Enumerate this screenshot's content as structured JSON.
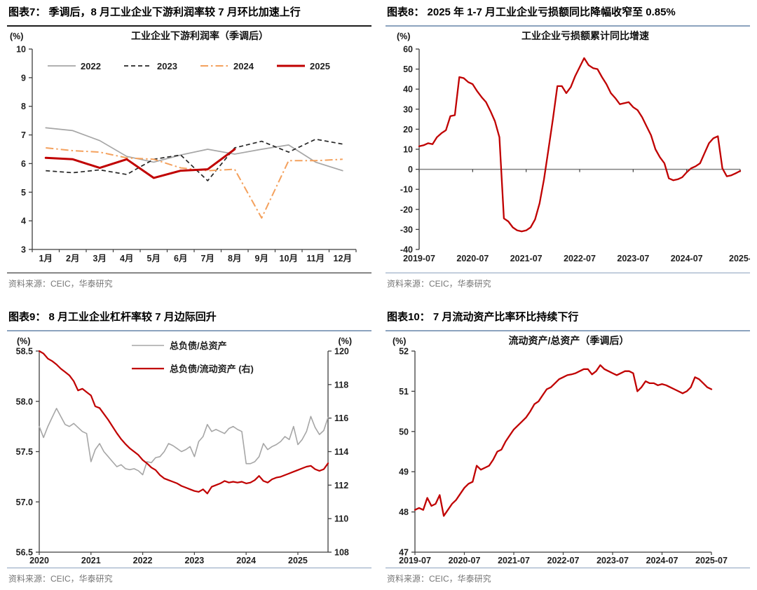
{
  "panels": [
    {
      "header": "图表7： 季调后，8 月工业企业下游利润率较 7 月环比加速上行",
      "source": "资料来源：CEIC，华泰研究"
    },
    {
      "header": "图表8： 2025 年 1-7 月工业企业亏损额同比降幅收窄至 0.85%",
      "source": "资料来源：CEIC，华泰研究"
    },
    {
      "header": "图表9： 8 月工业企业杠杆率较 7 月边际回升",
      "source": "资料来源：CEIC，华泰研究"
    },
    {
      "header": "图表10： 7 月流动资产比率环比持续下行",
      "source": "资料来源：CEIC，华泰研究"
    }
  ],
  "chart_data": [
    {
      "type": "line",
      "title": "工业企业下游利润率（季调后）",
      "y_unit": "(%)",
      "ylim": [
        3,
        10
      ],
      "yticks": [
        3,
        4,
        5,
        6,
        7,
        8,
        9,
        10
      ],
      "categories": [
        "1月",
        "2月",
        "3月",
        "4月",
        "5月",
        "6月",
        "7月",
        "8月",
        "9月",
        "10月",
        "11月",
        "12月"
      ],
      "legend": "row",
      "series": [
        {
          "name": "2022",
          "color": "#a6a6a6",
          "dash": "solid",
          "width": 1.7,
          "values": [
            7.25,
            7.15,
            6.8,
            6.25,
            6.05,
            6.3,
            6.5,
            6.33,
            6.5,
            6.65,
            6.05,
            5.75
          ]
        },
        {
          "name": "2023",
          "color": "#262626",
          "dash": "dashed",
          "width": 1.7,
          "values": [
            5.75,
            5.68,
            5.78,
            5.62,
            6.15,
            6.3,
            5.4,
            6.55,
            6.78,
            6.4,
            6.85,
            6.68
          ]
        },
        {
          "name": "2024",
          "color": "#f4a15d",
          "dash": "dashdot",
          "width": 2,
          "values": [
            6.55,
            6.45,
            6.4,
            6.2,
            6.15,
            5.85,
            5.75,
            5.8,
            4.1,
            6.1,
            6.1,
            6.15
          ]
        },
        {
          "name": "2025",
          "color": "#c00000",
          "dash": "solid",
          "width": 3,
          "values": [
            6.2,
            6.15,
            5.85,
            6.15,
            5.5,
            5.75,
            5.8,
            6.5
          ]
        }
      ]
    },
    {
      "type": "line",
      "title": "工业企业亏损额累计同比增速",
      "y_unit": "(%)",
      "ylim": [
        -40,
        60
      ],
      "yticks": [
        -40,
        -30,
        -20,
        -10,
        0,
        10,
        20,
        30,
        40,
        50,
        60
      ],
      "zero_line": true,
      "x_tick_labels": [
        "2019-07",
        "2020-07",
        "2021-07",
        "2022-07",
        "2023-07",
        "2024-07",
        "2025-"
      ],
      "x_tick_indices": [
        0,
        12,
        24,
        36,
        48,
        60,
        72
      ],
      "series": [
        {
          "name": "工业企业亏损额累计同比增速",
          "color": "#c00000",
          "dash": "solid",
          "width": 2.3,
          "values": [
            11.5,
            12,
            13,
            12.5,
            16,
            18,
            19.5,
            26.5,
            27,
            46,
            45.5,
            43.5,
            42.5,
            39,
            36,
            33.5,
            29,
            24,
            16,
            -24.5,
            -26,
            -29,
            -30.5,
            -31,
            -30.5,
            -29,
            -25,
            -17,
            -5,
            10,
            25,
            41.5,
            41.5,
            38,
            41,
            46.5,
            51,
            55.5,
            52,
            50.5,
            50,
            46,
            42.5,
            38,
            35.5,
            32.5,
            33,
            33.5,
            31,
            29.5,
            26,
            21.5,
            17,
            10,
            6,
            3,
            -4.5,
            -5.5,
            -5,
            -4,
            -1.5,
            0.5,
            1.5,
            3,
            8,
            13,
            15.5,
            16.5,
            0.5,
            -3.5,
            -3,
            -2,
            -0.85
          ]
        }
      ]
    },
    {
      "type": "line",
      "dual_axis": true,
      "left_axis": {
        "unit": "(%)",
        "lim": [
          56.5,
          58.5
        ],
        "ticks": [
          56.5,
          57.0,
          57.5,
          58.0,
          58.5
        ],
        "decimals": 1
      },
      "right_axis": {
        "unit": "(%)",
        "lim": [
          108,
          120
        ],
        "ticks": [
          108,
          110,
          112,
          114,
          116,
          118,
          120
        ]
      },
      "legend": "column",
      "x_tick_labels": [
        "2020",
        "2021",
        "2022",
        "2023",
        "2024",
        "2025"
      ],
      "x_tick_indices": [
        0,
        12,
        24,
        36,
        48,
        60
      ],
      "series": [
        {
          "name": "总负债/总资产",
          "axis": "left",
          "color": "#a6a6a6",
          "dash": "solid",
          "width": 1.6,
          "values": [
            57.75,
            57.64,
            57.75,
            57.84,
            57.93,
            57.85,
            57.77,
            57.75,
            57.78,
            57.74,
            57.7,
            57.68,
            57.4,
            57.52,
            57.58,
            57.5,
            57.45,
            57.4,
            57.35,
            57.37,
            57.33,
            57.32,
            57.33,
            57.31,
            57.27,
            57.4,
            57.39,
            57.44,
            57.45,
            57.5,
            57.58,
            57.56,
            57.53,
            57.5,
            57.52,
            57.55,
            57.45,
            57.6,
            57.65,
            57.77,
            57.7,
            57.72,
            57.7,
            57.68,
            57.73,
            57.75,
            57.72,
            57.7,
            57.38,
            57.38,
            57.4,
            57.45,
            57.58,
            57.52,
            57.55,
            57.57,
            57.6,
            57.65,
            57.62,
            57.75,
            57.57,
            57.62,
            57.7,
            57.85,
            57.74,
            57.67,
            57.71,
            57.84
          ]
        },
        {
          "name": "总负债/流动资产 (右)",
          "axis": "right",
          "color": "#c00000",
          "dash": "solid",
          "width": 2.2,
          "values": [
            120.0,
            119.85,
            119.55,
            119.4,
            119.2,
            118.95,
            118.75,
            118.55,
            118.2,
            117.65,
            117.75,
            117.55,
            117.35,
            116.7,
            116.6,
            116.25,
            115.9,
            115.5,
            115.1,
            114.75,
            114.45,
            114.2,
            114.0,
            113.8,
            113.5,
            113.3,
            113.05,
            112.9,
            112.6,
            112.4,
            112.3,
            112.2,
            112.1,
            111.95,
            111.85,
            111.75,
            111.65,
            111.6,
            111.75,
            111.5,
            111.9,
            112.0,
            112.1,
            112.25,
            112.15,
            112.2,
            112.15,
            112.2,
            112.1,
            112.15,
            112.3,
            112.55,
            112.25,
            112.15,
            112.35,
            112.45,
            112.5,
            112.6,
            112.7,
            112.8,
            112.9,
            113.0,
            113.1,
            113.15,
            112.95,
            112.85,
            112.95,
            113.3
          ]
        }
      ]
    },
    {
      "type": "line",
      "title": "流动资产/总资产（季调后）",
      "y_unit": "(%)",
      "ylim": [
        47,
        52
      ],
      "yticks": [
        47,
        48,
        49,
        50,
        51,
        52
      ],
      "x_tick_labels": [
        "2019-07",
        "2020-07",
        "2021-07",
        "2022-07",
        "2023-07",
        "2024-07",
        "2025-07"
      ],
      "x_tick_indices": [
        0,
        12,
        24,
        36,
        48,
        60,
        72
      ],
      "series": [
        {
          "name": "流动资产/总资产（季调后）",
          "color": "#c00000",
          "dash": "solid",
          "width": 2.3,
          "values": [
            48.05,
            48.1,
            48.05,
            48.35,
            48.15,
            48.2,
            48.42,
            47.9,
            48.05,
            48.2,
            48.3,
            48.45,
            48.6,
            48.7,
            48.75,
            49.15,
            49.05,
            49.1,
            49.15,
            49.3,
            49.5,
            49.55,
            49.75,
            49.9,
            50.05,
            50.15,
            50.25,
            50.35,
            50.5,
            50.68,
            50.75,
            50.9,
            51.05,
            51.1,
            51.2,
            51.3,
            51.35,
            51.4,
            51.42,
            51.45,
            51.5,
            51.55,
            51.55,
            51.42,
            51.5,
            51.65,
            51.55,
            51.5,
            51.45,
            51.4,
            51.45,
            51.5,
            51.5,
            51.45,
            51.0,
            51.1,
            51.25,
            51.2,
            51.2,
            51.15,
            51.18,
            51.15,
            51.1,
            51.05,
            51.0,
            50.95,
            51.0,
            51.1,
            51.35,
            51.3,
            51.2,
            51.1,
            51.05
          ]
        }
      ]
    }
  ]
}
